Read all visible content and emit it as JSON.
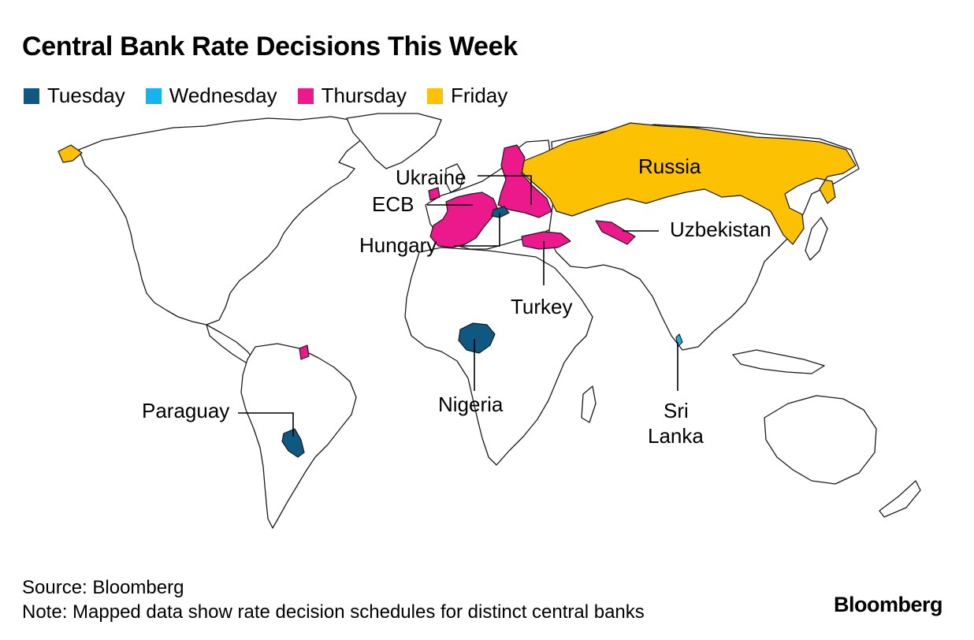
{
  "title": "Central Bank Rate Decisions This Week",
  "colors": {
    "tuesday": "#0f5882",
    "wednesday": "#19b2f0",
    "thursday": "#eb198c",
    "friday": "#fbc102"
  },
  "legend": [
    {
      "key": "tuesday",
      "label": "Tuesday"
    },
    {
      "key": "wednesday",
      "label": "Wednesday"
    },
    {
      "key": "thursday",
      "label": "Thursday"
    },
    {
      "key": "friday",
      "label": "Friday"
    }
  ],
  "map_labels": {
    "russia": "Russia",
    "ukraine": "Ukraine",
    "ecb": "ECB",
    "hungary": "Hungary",
    "uzbekistan": "Uzbekistan",
    "turkey": "Turkey",
    "nigeria": "Nigeria",
    "sri_lanka_line1": "Sri",
    "sri_lanka_line2": "Lanka",
    "paraguay": "Paraguay"
  },
  "decisions": [
    {
      "name": "Paraguay",
      "day": "tuesday"
    },
    {
      "name": "Nigeria",
      "day": "tuesday"
    },
    {
      "name": "Hungary",
      "day": "tuesday"
    },
    {
      "name": "Sri Lanka",
      "day": "wednesday"
    },
    {
      "name": "Ukraine",
      "day": "thursday"
    },
    {
      "name": "ECB",
      "day": "thursday"
    },
    {
      "name": "Turkey",
      "day": "thursday"
    },
    {
      "name": "Uzbekistan",
      "day": "thursday"
    },
    {
      "name": "Russia",
      "day": "friday"
    }
  ],
  "footer": {
    "source": "Source: Bloomberg",
    "note": "Note: Mapped data show rate decision schedules for distinct central banks"
  },
  "brand": "Bloomberg"
}
